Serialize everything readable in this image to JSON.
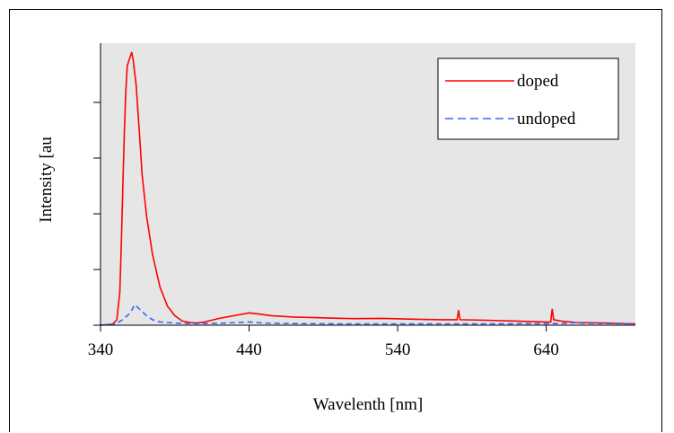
{
  "chart_data": {
    "type": "line",
    "title": "",
    "xlabel": "Wavelenth [nm]",
    "ylabel": "Intensity [au",
    "xlim": [
      340,
      700
    ],
    "ylim": [
      0,
      1.0
    ],
    "x_ticks": [
      "340",
      "440",
      "540",
      "640"
    ],
    "y_tick_count": 5,
    "plot_background": "#e6e6e6",
    "grid": false,
    "legend_position": "top-right",
    "series": [
      {
        "name": "doped",
        "color": "#ff0000",
        "style": "solid",
        "points": [
          [
            340,
            0.0
          ],
          [
            348,
            0.003
          ],
          [
            351,
            0.02
          ],
          [
            353,
            0.12
          ],
          [
            354,
            0.3
          ],
          [
            355,
            0.5
          ],
          [
            356,
            0.7
          ],
          [
            357,
            0.85
          ],
          [
            358,
            0.95
          ],
          [
            361,
            1.0
          ],
          [
            362,
            0.97
          ],
          [
            364,
            0.88
          ],
          [
            366,
            0.72
          ],
          [
            368,
            0.55
          ],
          [
            371,
            0.4
          ],
          [
            375,
            0.26
          ],
          [
            380,
            0.14
          ],
          [
            385,
            0.07
          ],
          [
            390,
            0.035
          ],
          [
            395,
            0.015
          ],
          [
            400,
            0.01
          ],
          [
            405,
            0.008
          ],
          [
            410,
            0.012
          ],
          [
            420,
            0.025
          ],
          [
            430,
            0.035
          ],
          [
            440,
            0.045
          ],
          [
            445,
            0.042
          ],
          [
            455,
            0.035
          ],
          [
            470,
            0.03
          ],
          [
            490,
            0.027
          ],
          [
            510,
            0.024
          ],
          [
            530,
            0.025
          ],
          [
            550,
            0.022
          ],
          [
            570,
            0.02
          ],
          [
            580,
            0.02
          ],
          [
            581,
            0.055
          ],
          [
            582,
            0.02
          ],
          [
            600,
            0.018
          ],
          [
            620,
            0.015
          ],
          [
            640,
            0.012
          ],
          [
            643,
            0.012
          ],
          [
            644,
            0.06
          ],
          [
            645,
            0.02
          ],
          [
            650,
            0.015
          ],
          [
            660,
            0.01
          ],
          [
            680,
            0.008
          ],
          [
            700,
            0.005
          ]
        ]
      },
      {
        "name": "undoped",
        "color": "#3366ff",
        "style": "dashed",
        "points": [
          [
            340,
            0.0
          ],
          [
            350,
            0.005
          ],
          [
            355,
            0.02
          ],
          [
            360,
            0.045
          ],
          [
            363,
            0.075
          ],
          [
            365,
            0.065
          ],
          [
            368,
            0.05
          ],
          [
            371,
            0.035
          ],
          [
            375,
            0.02
          ],
          [
            380,
            0.012
          ],
          [
            390,
            0.008
          ],
          [
            400,
            0.006
          ],
          [
            420,
            0.007
          ],
          [
            440,
            0.012
          ],
          [
            450,
            0.008
          ],
          [
            470,
            0.006
          ],
          [
            500,
            0.005
          ],
          [
            550,
            0.005
          ],
          [
            600,
            0.005
          ],
          [
            650,
            0.006
          ],
          [
            660,
            0.01
          ],
          [
            665,
            0.007
          ],
          [
            680,
            0.006
          ],
          [
            700,
            0.005
          ]
        ]
      }
    ]
  }
}
